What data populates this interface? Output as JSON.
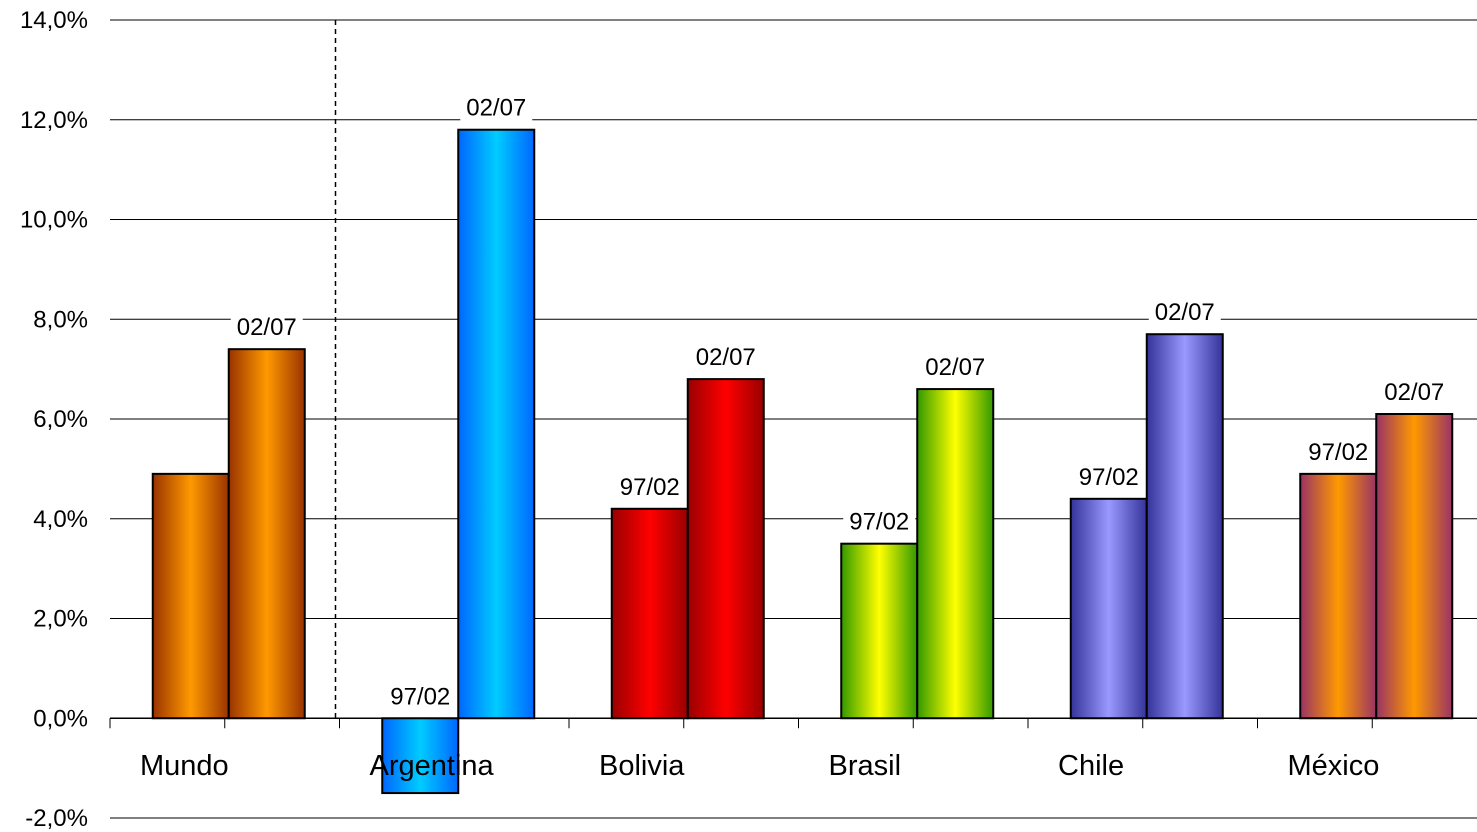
{
  "chart_data": {
    "type": "bar",
    "categories": [
      "Mundo",
      "Argentina",
      "Bolivia",
      "Brasil",
      "Chile",
      "México"
    ],
    "series": [
      {
        "values": [
          4.9,
          -1.5,
          4.2,
          3.5,
          4.4,
          4.9
        ]
      },
      {
        "values": [
          7.4,
          11.8,
          6.8,
          6.6,
          7.7,
          6.1
        ]
      }
    ],
    "data_labels": [
      [
        "",
        "02/07"
      ],
      [
        "97/02",
        "02/07"
      ],
      [
        "97/02",
        "02/07"
      ],
      [
        "97/02",
        "02/07"
      ],
      [
        "97/02",
        "02/07"
      ],
      [
        "97/02",
        "02/07"
      ]
    ],
    "y_ticks": [
      -2,
      0,
      2,
      4,
      6,
      8,
      10,
      12,
      14
    ],
    "y_tick_labels": [
      "-2,0%",
      "0,0%",
      "2,0%",
      "4,0%",
      "6,0%",
      "8,0%",
      "10,0%",
      "12,0%",
      "14,0%"
    ],
    "ylim": [
      -2,
      14
    ],
    "grid": true,
    "separator_after_category": 0,
    "category_colors": [
      {
        "light": "#FF9900",
        "dark": "#993300"
      },
      {
        "light": "#00CCFF",
        "dark": "#0066FF"
      },
      {
        "light": "#FF0000",
        "dark": "#990000"
      },
      {
        "light": "#FFFF00",
        "dark": "#339900"
      },
      {
        "light": "#9999FF",
        "dark": "#333399"
      },
      {
        "light": "#FF9900",
        "dark": "#993366"
      }
    ],
    "bar_outline_color": "#000000",
    "grid_color": "#000000"
  }
}
